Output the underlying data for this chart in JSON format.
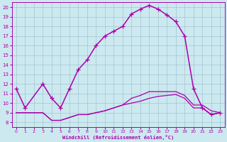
{
  "xlabel": "Windchill (Refroidissement éolien,°C)",
  "xlim": [
    -0.5,
    23.5
  ],
  "ylim": [
    7.5,
    20.5
  ],
  "xticks": [
    0,
    1,
    2,
    3,
    4,
    5,
    6,
    7,
    8,
    9,
    10,
    11,
    12,
    13,
    14,
    15,
    16,
    17,
    18,
    19,
    20,
    21,
    22,
    23
  ],
  "yticks": [
    8,
    9,
    10,
    11,
    12,
    13,
    14,
    15,
    16,
    17,
    18,
    19,
    20
  ],
  "bg_color": "#cce9f0",
  "line_color": "#aa00aa",
  "grid_color": "#99bbcc",
  "arch_x": [
    0,
    1,
    3,
    4,
    5,
    6,
    7,
    8,
    9,
    10,
    11,
    12,
    13,
    14,
    15,
    16,
    17,
    18,
    19,
    20,
    21,
    22,
    23
  ],
  "arch_y": [
    11.5,
    9.5,
    12.0,
    10.5,
    9.5,
    11.5,
    13.5,
    14.5,
    16.0,
    17.0,
    17.5,
    18.0,
    19.3,
    19.8,
    20.2,
    19.8,
    19.2,
    18.5,
    17.0,
    11.5,
    9.5,
    8.8,
    9.0
  ],
  "flat1_x": [
    0,
    1,
    2,
    3,
    4,
    5,
    6,
    7,
    8,
    9,
    10,
    11,
    12,
    13,
    14,
    15,
    16,
    17,
    18,
    19,
    20,
    21,
    22,
    23
  ],
  "flat1_y": [
    9.0,
    9.0,
    9.0,
    9.0,
    8.2,
    8.2,
    8.5,
    8.8,
    8.8,
    9.0,
    9.2,
    9.5,
    9.8,
    10.0,
    10.2,
    10.5,
    10.7,
    10.8,
    10.9,
    10.5,
    9.5,
    9.5,
    8.8,
    9.0
  ],
  "flat2_x": [
    0,
    1,
    2,
    3,
    4,
    5,
    6,
    7,
    8,
    9,
    10,
    11,
    12,
    13,
    14,
    15,
    16,
    17,
    18,
    19,
    20,
    21,
    22,
    23
  ],
  "flat2_y": [
    9.0,
    9.0,
    9.0,
    9.0,
    8.2,
    8.2,
    8.5,
    8.8,
    8.8,
    9.0,
    9.2,
    9.5,
    9.8,
    10.5,
    10.8,
    11.2,
    11.2,
    11.2,
    11.2,
    10.8,
    9.8,
    9.8,
    9.2,
    9.0
  ]
}
